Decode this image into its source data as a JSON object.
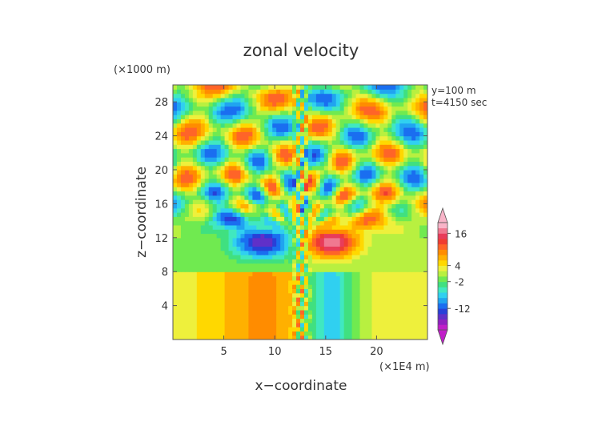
{
  "chart_data": {
    "type": "heatmap",
    "title": "zonal velocity",
    "xlabel": "x−coordinate",
    "ylabel": "z−coordinate",
    "x_unit_label": "(×1E4 m)",
    "y_unit_label": "(×1000 m)",
    "annotations": [
      "y=100 m",
      "t=4150 sec"
    ],
    "xlim": [
      0,
      25
    ],
    "ylim": [
      0,
      30
    ],
    "x_ticks": [
      5,
      10,
      15,
      20
    ],
    "y_ticks": [
      4,
      8,
      12,
      16,
      20,
      24,
      28
    ],
    "colorbar": {
      "tick_labels": [
        "16",
        "4",
        "-2",
        "-12"
      ],
      "tick_values": [
        16,
        4,
        -2,
        -12
      ],
      "levels": [
        -20,
        -18,
        -16,
        -14,
        -12,
        -10,
        -8,
        -6,
        -4,
        -2,
        0,
        2,
        4,
        6,
        8,
        10,
        12,
        14,
        16,
        18,
        20
      ],
      "colors": [
        "#c01ec8",
        "#9020c0",
        "#6030c8",
        "#2840d8",
        "#1a6ef0",
        "#20a4f0",
        "#30d0f0",
        "#40e8c0",
        "#40e080",
        "#70ea50",
        "#b8f040",
        "#eef03c",
        "#ffd800",
        "#ffb000",
        "#ff8c00",
        "#ff6428",
        "#f03c32",
        "#e83c5a",
        "#f07890",
        "#f8b4c8"
      ],
      "extend": "both"
    },
    "features": [
      {
        "x": 8.8,
        "z": 11.5,
        "value": -16
      },
      {
        "x": 15.6,
        "z": 11.5,
        "value": 18
      },
      {
        "x": 15.3,
        "z": 4.0,
        "value": -11
      },
      {
        "x": 9.0,
        "z": 4.0,
        "value": 6
      },
      {
        "x": 5.0,
        "z": 14.5,
        "value": -10
      },
      {
        "x": 20.0,
        "z": 14.5,
        "value": 8
      }
    ]
  }
}
